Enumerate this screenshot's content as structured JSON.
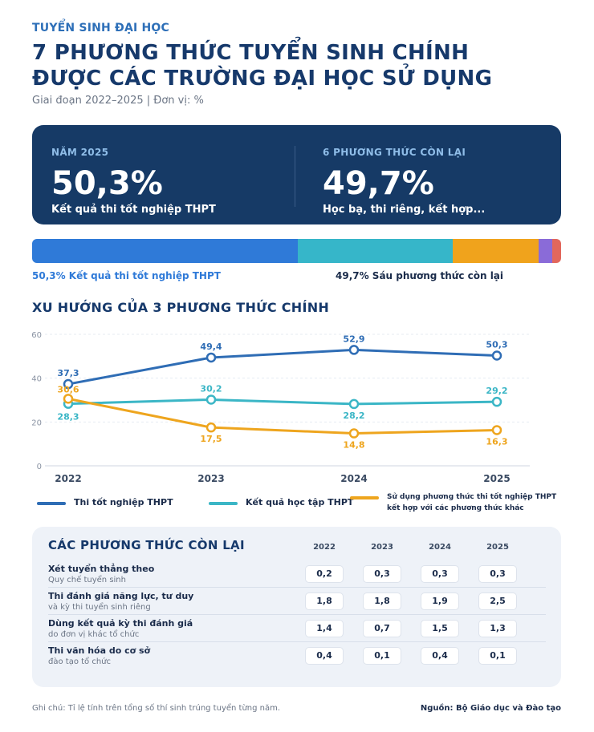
{
  "header": {
    "kicker": "TUYỂN SINH ĐẠI HỌC",
    "title_line1": "7 PHƯƠNG THỨC TUYỂN SINH CHÍNH",
    "title_line2": "ĐƯỢC CÁC TRƯỜNG ĐẠI HỌC SỬ DỤNG",
    "subtitle": "Giai đoạn 2022–2025 | Đơn vị: %"
  },
  "hero": {
    "left": {
      "label": "NĂM 2025",
      "value": "50,3%",
      "desc": "Kết quả thi tốt nghiệp THPT"
    },
    "right": {
      "label": "6 PHƯƠNG THỨC CÒN LẠI",
      "value": "49,7%",
      "desc": "Học bạ, thi riêng, kết hợp..."
    }
  },
  "stack": {
    "segments": [
      {
        "value": 50.3,
        "color": "#2f7ad8"
      },
      {
        "value": 29.2,
        "color": "#36b6c9"
      },
      {
        "value": 16.3,
        "color": "#f0a31c"
      },
      {
        "value": 2.5,
        "color": "#8a6bd8"
      },
      {
        "value": 1.7,
        "color": "#e2675c"
      }
    ],
    "left_label": "50,3% Kết quả thi tốt nghiệp THPT",
    "right_label": "49,7% Sáu phương thức còn lại",
    "left_label_color": "#2f7ad8"
  },
  "trend": {
    "section_title": "XU HƯỚNG CỦA 3 PHƯƠNG THỨC CHÍNH"
  },
  "chart_data": {
    "type": "line",
    "x": [
      "2022",
      "2023",
      "2024",
      "2025"
    ],
    "ylim": [
      0,
      60
    ],
    "yticks": [
      "0",
      "20",
      "40",
      "60"
    ],
    "grid": true,
    "series": [
      {
        "name": "Thi tốt nghiệp THPT",
        "color": "#2f6db5",
        "values": [
          37.3,
          49.4,
          52.9,
          50.3
        ],
        "labels": [
          "37,3",
          "49,4",
          "52,9",
          "50,3"
        ],
        "label_pos": "above"
      },
      {
        "name": "Kết quả học tập THPT",
        "color": "#3bb6c6",
        "values": [
          28.3,
          30.2,
          28.2,
          29.2
        ],
        "labels": [
          "28,3",
          "30,2",
          "28,2",
          "29,2"
        ],
        "label_pos": "mixed"
      },
      {
        "name": "Sử dụng phương thức thi tốt nghiệp THPT kết hợp với các phương thức khác",
        "color": "#eea51e",
        "values": [
          30.6,
          17.5,
          14.8,
          16.3
        ],
        "labels": [
          "30,6",
          "17,5",
          "14,8",
          "16,3"
        ],
        "label_pos": "below"
      }
    ]
  },
  "legend": {
    "items": [
      {
        "line1": "Thi tốt nghiệp THPT",
        "line2": ""
      },
      {
        "line1": "Kết quả học tập THPT",
        "line2": ""
      },
      {
        "line1": "Sử dụng phương thức thi tốt nghiệp THPT",
        "line2": "kết hợp với các phương thức khác"
      }
    ]
  },
  "table": {
    "title": "CÁC PHƯƠNG THỨC CÒN LẠI",
    "years": [
      "2022",
      "2023",
      "2024",
      "2025"
    ],
    "rows": [
      {
        "name": "Xét tuyển thẳng theo",
        "sub": "Quy chế tuyển sinh",
        "values": [
          "0,2",
          "0,3",
          "0,3",
          "0,3"
        ]
      },
      {
        "name": "Thi đánh giá năng lực, tư duy",
        "sub": "và kỳ thi tuyển sinh riêng",
        "values": [
          "1,8",
          "1,8",
          "1,9",
          "2,5"
        ]
      },
      {
        "name": "Dùng kết quả kỳ thi đánh giá",
        "sub": "do đơn vị khác tổ chức",
        "values": [
          "1,4",
          "0,7",
          "1,5",
          "1,3"
        ]
      },
      {
        "name": "Thi văn hóa do cơ sở",
        "sub": "đào tạo tổ chức",
        "values": [
          "0,4",
          "0,1",
          "0,4",
          "0,1"
        ]
      }
    ]
  },
  "footer": {
    "note": "Ghi chú: Tỉ lệ tính trên tổng số thí sinh trúng tuyển từng năm.",
    "source": "Nguồn: Bộ Giáo dục và Đào tạo"
  }
}
